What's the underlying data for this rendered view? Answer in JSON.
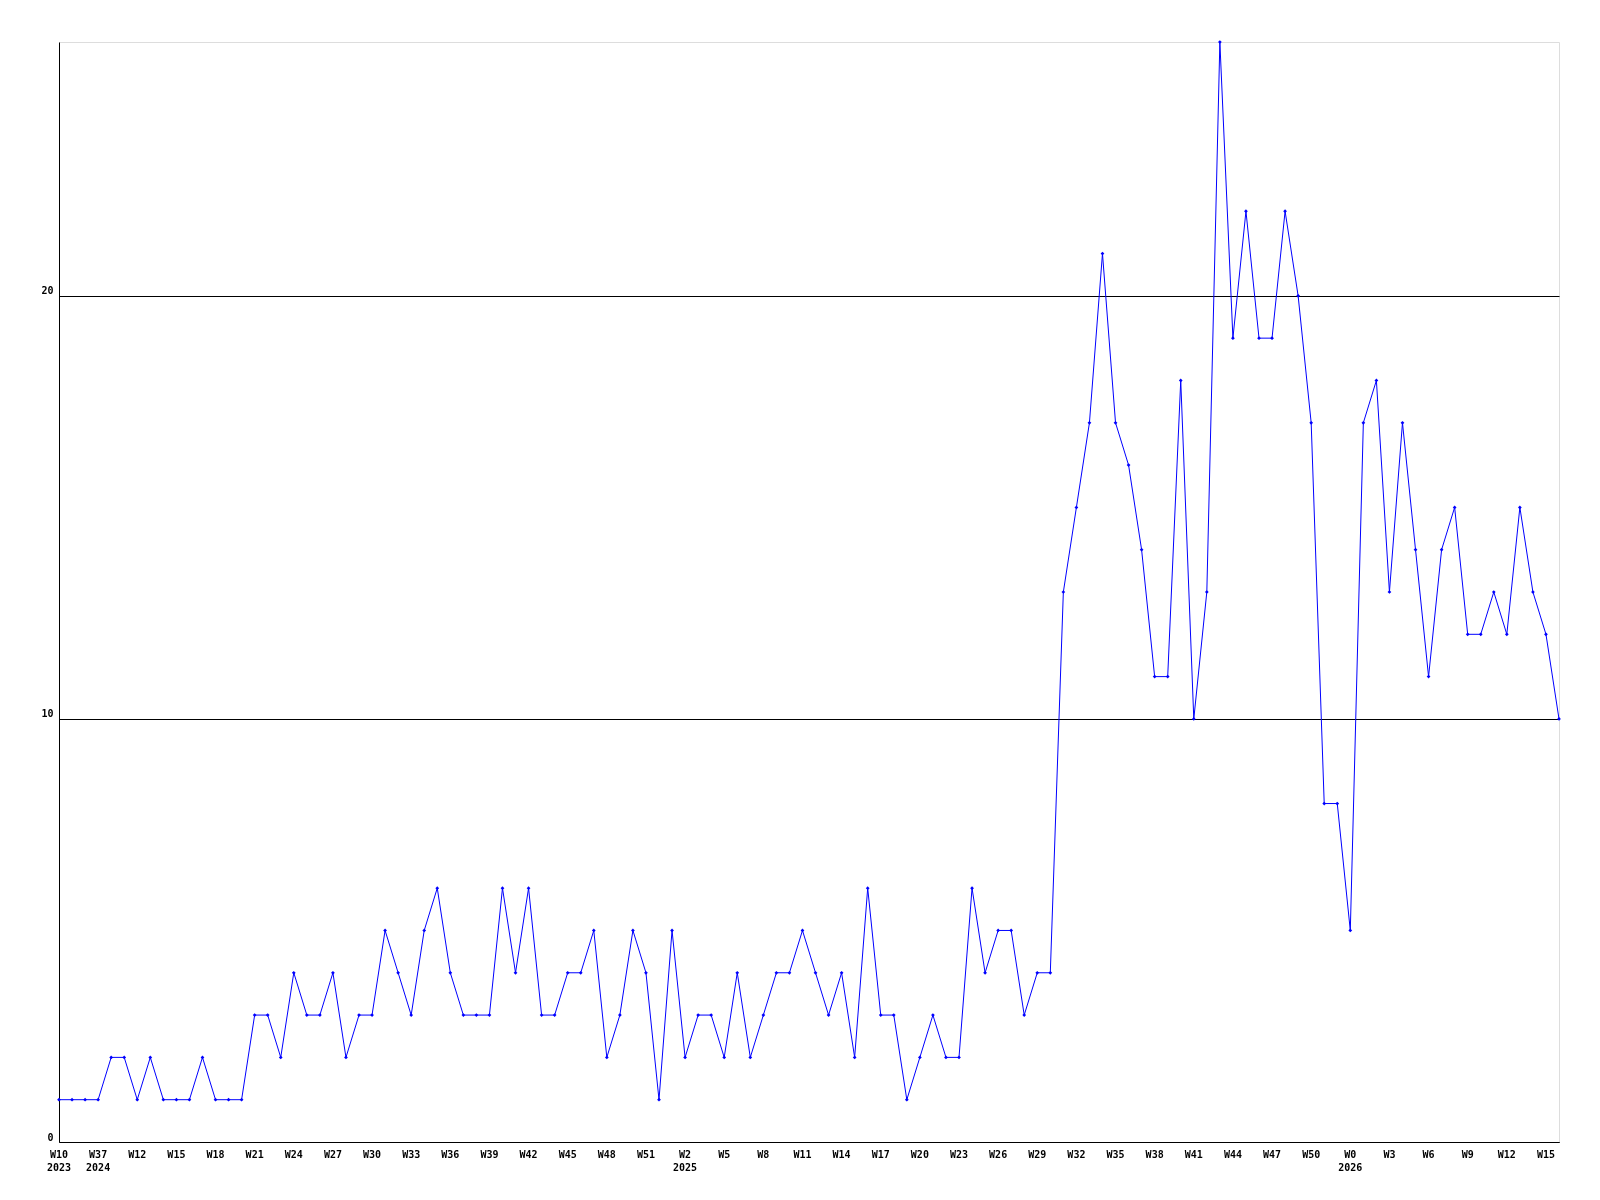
{
  "chart_data": {
    "type": "line",
    "categories": [
      "W10 2023",
      null,
      null,
      "W37 2024",
      null,
      null,
      "W12",
      null,
      null,
      "W15",
      null,
      null,
      "W18",
      null,
      null,
      "W21",
      null,
      null,
      "W24",
      null,
      null,
      "W27",
      null,
      null,
      "W30",
      null,
      null,
      "W33",
      null,
      null,
      "W36",
      null,
      null,
      "W39",
      null,
      null,
      "W42",
      null,
      null,
      "W45",
      null,
      null,
      "W48",
      null,
      null,
      "W51",
      null,
      null,
      "W2 2025",
      null,
      null,
      "W5",
      null,
      null,
      "W8",
      null,
      null,
      "W11",
      null,
      null,
      "W14",
      null,
      null,
      "W17",
      null,
      null,
      "W20",
      null,
      null,
      "W23",
      null,
      null,
      "W26",
      null,
      null,
      "W29",
      null,
      null,
      "W32",
      null,
      null,
      "W35",
      null,
      null,
      "W38",
      null,
      null,
      "W41",
      null,
      null,
      "W44",
      null,
      null,
      "W47",
      null,
      null,
      "W50",
      null,
      null,
      "W0 2026",
      null,
      null,
      "W3",
      null,
      null,
      "W6",
      null,
      null,
      "W9",
      null,
      null,
      "W12",
      null,
      null,
      "W15",
      null
    ],
    "series": [
      {
        "color": "#0000ff",
        "values": [
          1,
          1,
          1,
          1,
          2,
          2,
          1,
          2,
          1,
          1,
          1,
          2,
          1,
          1,
          1,
          3,
          3,
          2,
          4,
          3,
          3,
          4,
          2,
          3,
          3,
          5,
          4,
          3,
          5,
          6,
          4,
          3,
          3,
          3,
          6,
          4,
          6,
          3,
          3,
          4,
          4,
          5,
          2,
          3,
          5,
          4,
          1,
          5,
          2,
          3,
          3,
          2,
          4,
          2,
          3,
          4,
          4,
          5,
          4,
          3,
          4,
          2,
          6,
          3,
          3,
          1,
          2,
          3,
          2,
          2,
          6,
          4,
          5,
          5,
          3,
          4,
          4,
          13,
          15,
          17,
          21,
          17,
          16,
          14,
          11,
          11,
          18,
          10,
          13,
          26,
          19,
          22,
          19,
          19,
          22,
          20,
          17,
          8,
          8,
          5,
          17,
          18,
          13,
          17,
          14,
          11,
          14,
          15,
          12,
          12,
          13,
          12,
          15,
          13,
          12,
          10
        ]
      }
    ],
    "ylim": [
      0,
      26
    ],
    "yticks": [
      0,
      10,
      20
    ],
    "grid": "y",
    "marker": "diamond",
    "line_style": "solid"
  }
}
